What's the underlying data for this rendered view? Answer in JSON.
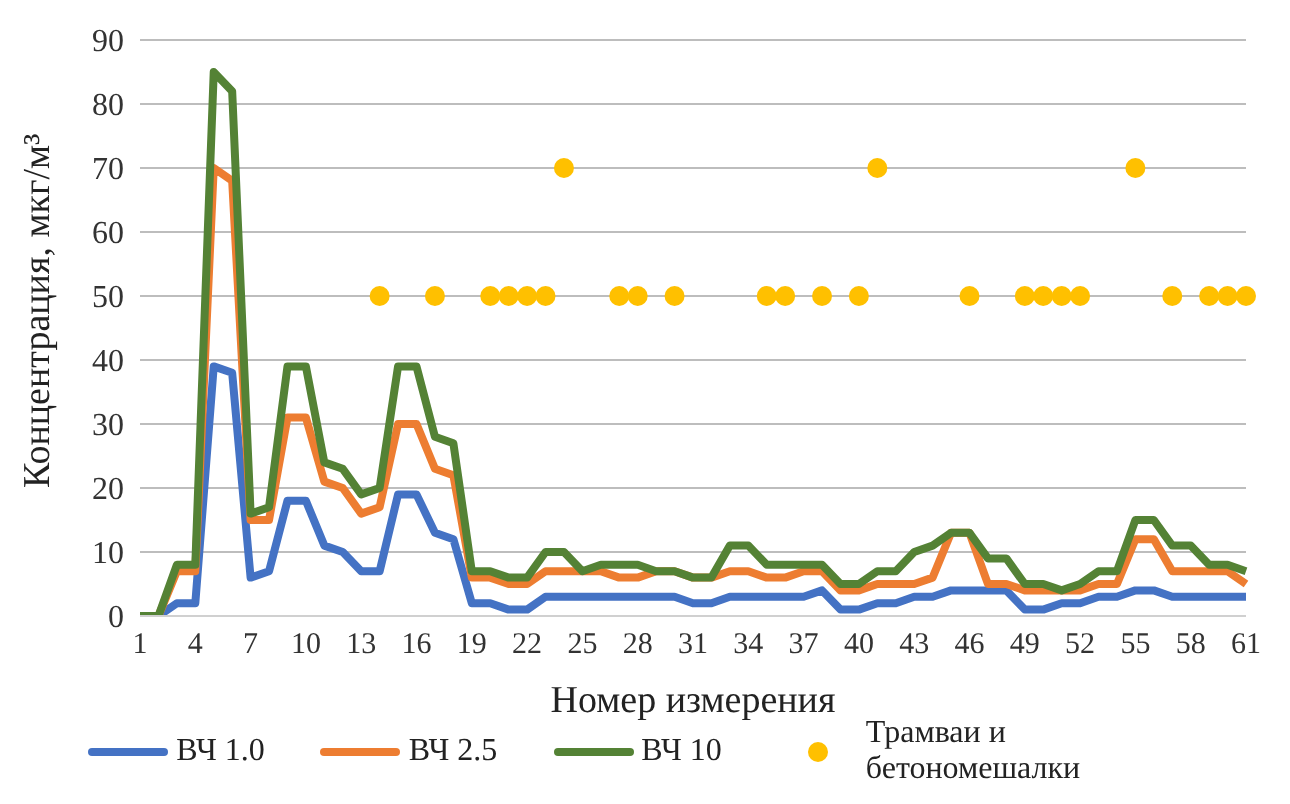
{
  "chart_data": {
    "type": "line",
    "xlabel": "Номер измерения",
    "ylabel": "Концентрация, мкг/м³",
    "categories": [
      "1",
      null,
      null,
      "4",
      null,
      null,
      "7",
      null,
      null,
      "10",
      null,
      null,
      "13",
      null,
      null,
      "16",
      null,
      null,
      "19",
      null,
      null,
      "22",
      null,
      null,
      "25",
      null,
      null,
      "28",
      null,
      null,
      "31",
      null,
      null,
      "34",
      null,
      null,
      "37",
      null,
      null,
      "40",
      null,
      null,
      "43",
      null,
      null,
      "46",
      null,
      null,
      "49",
      null,
      null,
      "52",
      null,
      null,
      "55",
      null,
      null,
      "58",
      null,
      null,
      "61"
    ],
    "ylim": [
      0,
      90
    ],
    "yticks": [
      0,
      10,
      20,
      30,
      40,
      50,
      60,
      70,
      80,
      90
    ],
    "grid": "y",
    "legend": "bottom",
    "marker": "none",
    "line_style": "solid",
    "series": [
      {
        "name": "ВЧ 1.0",
        "color": "#4472c4",
        "values": [
          0,
          0,
          2,
          2,
          39,
          38,
          6,
          7,
          18,
          18,
          11,
          10,
          7,
          7,
          19,
          19,
          13,
          12,
          2,
          2,
          1,
          1,
          3,
          3,
          3,
          3,
          3,
          3,
          3,
          3,
          2,
          2,
          3,
          3,
          3,
          3,
          3,
          4,
          1,
          1,
          2,
          2,
          3,
          3,
          4,
          4,
          4,
          4,
          1,
          1,
          2,
          2,
          3,
          3,
          4,
          4,
          3,
          3,
          3,
          3,
          3
        ]
      },
      {
        "name": "ВЧ 2.5",
        "color": "#ed7d31",
        "values": [
          0,
          0,
          7,
          7,
          70,
          68,
          15,
          15,
          31,
          31,
          21,
          20,
          16,
          17,
          30,
          30,
          23,
          22,
          6,
          6,
          5,
          5,
          7,
          7,
          7,
          7,
          6,
          6,
          7,
          7,
          6,
          6,
          7,
          7,
          6,
          6,
          7,
          7,
          4,
          4,
          5,
          5,
          5,
          6,
          13,
          13,
          5,
          5,
          4,
          4,
          4,
          4,
          5,
          5,
          12,
          12,
          7,
          7,
          7,
          7,
          5
        ]
      },
      {
        "name": "ВЧ 10",
        "color": "#548235",
        "values": [
          0,
          0,
          8,
          8,
          85,
          82,
          16,
          17,
          39,
          39,
          24,
          23,
          19,
          20,
          39,
          39,
          28,
          27,
          7,
          7,
          6,
          6,
          10,
          10,
          7,
          8,
          8,
          8,
          7,
          7,
          6,
          6,
          11,
          11,
          8,
          8,
          8,
          8,
          5,
          5,
          7,
          7,
          10,
          11,
          13,
          13,
          9,
          9,
          5,
          5,
          4,
          5,
          7,
          7,
          15,
          15,
          11,
          11,
          8,
          8,
          7
        ]
      },
      {
        "name": "Трамваи и бетономешалки",
        "type": "scatter",
        "marker": "circle",
        "color": "#ffc000",
        "values": [
          null,
          null,
          null,
          null,
          null,
          null,
          null,
          null,
          null,
          null,
          null,
          null,
          null,
          50,
          null,
          null,
          50,
          null,
          null,
          50,
          50,
          50,
          50,
          70,
          null,
          null,
          50,
          50,
          null,
          50,
          null,
          null,
          null,
          null,
          50,
          50,
          null,
          50,
          null,
          50,
          70,
          null,
          null,
          null,
          null,
          50,
          null,
          null,
          50,
          50,
          50,
          50,
          null,
          null,
          70,
          null,
          50,
          null,
          50,
          50,
          50
        ]
      }
    ]
  }
}
